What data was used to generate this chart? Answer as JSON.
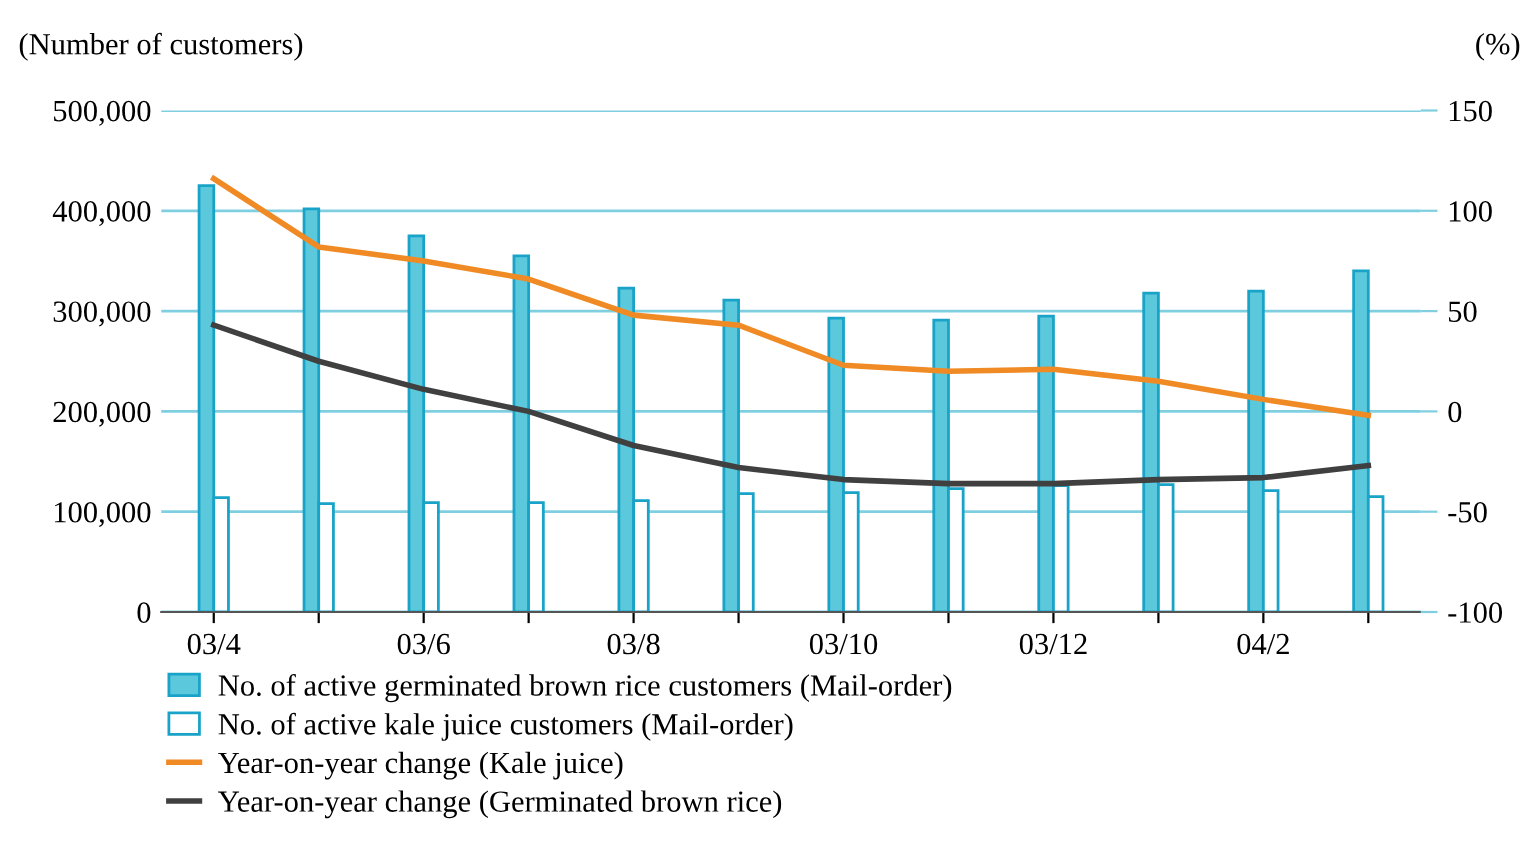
{
  "chart_data": {
    "type": "bar",
    "ylabel": "(Number of customers)",
    "y2label": "(%)",
    "categories": [
      "03/4",
      null,
      "03/6",
      null,
      "03/8",
      null,
      "03/10",
      null,
      "03/12",
      null,
      "04/2",
      null
    ],
    "series": [
      {
        "name": "No. of active germinated brown rice customers (Mail-order)",
        "color": "#5bc8dc",
        "values": [
          425000,
          402000,
          375000,
          355000,
          323000,
          311000,
          293000,
          291000,
          295000,
          318000,
          320000,
          340000
        ]
      },
      {
        "name": "No. of active kale juice customers (Mail-order)",
        "color": "#ffffff",
        "values": [
          114000,
          108000,
          109000,
          109000,
          111000,
          118000,
          119000,
          123000,
          126000,
          127000,
          121000,
          115000
        ]
      },
      {
        "name": "Year-on-year change (Kale juice)",
        "type": "line",
        "axis": "y2",
        "color": "#f08a24",
        "values": [
          116,
          82,
          75,
          66,
          48,
          43,
          23,
          20,
          21,
          15,
          6,
          -2
        ]
      },
      {
        "name": "Year-on-year change (Germinated brown rice)",
        "type": "line",
        "axis": "y2",
        "color": "#404040",
        "values": [
          43,
          25,
          11,
          0,
          -17,
          -28,
          -34,
          -36,
          -36,
          -34,
          -33,
          -27
        ]
      }
    ],
    "ylim": [
      0,
      500000
    ],
    "yticks": [
      {
        "value": 0,
        "label": "0"
      },
      {
        "value": 100000,
        "label": "100,000"
      },
      {
        "value": 200000,
        "label": "200,000"
      },
      {
        "value": 300000,
        "label": "300,000"
      },
      {
        "value": 400000,
        "label": "400,000"
      },
      {
        "value": 500000,
        "label": "500,000"
      }
    ],
    "y2lim": [
      -100,
      150
    ],
    "y2ticks": [
      -100,
      -50,
      0,
      50,
      100,
      150
    ],
    "grid": "y",
    "legend": "bottom",
    "marker": "none",
    "line_style": "solid"
  }
}
